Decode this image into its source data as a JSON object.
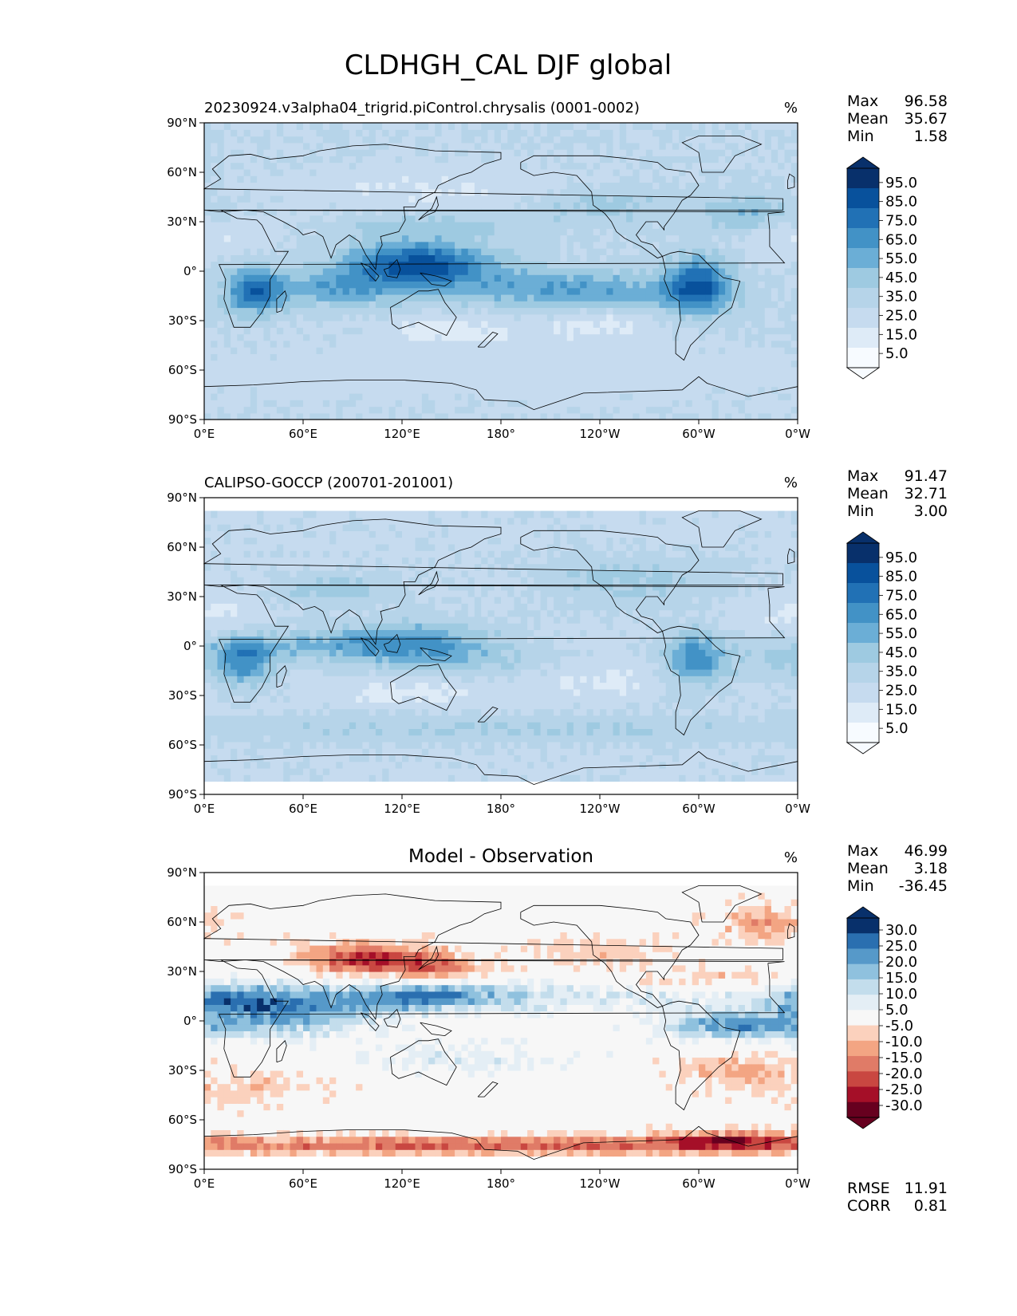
{
  "figure_title": "CLDHGH_CAL DJF global",
  "colors": {
    "seq_cmap": [
      "#f7fbff",
      "#deebf7",
      "#c6dbef",
      "#b6d4e9",
      "#9ecae1",
      "#6baed6",
      "#4292c6",
      "#2171b5",
      "#08519c",
      "#08306b"
    ],
    "div_cmap": [
      "#67001f",
      "#a50f28",
      "#c94741",
      "#e07b67",
      "#f3a583",
      "#fbd1bd",
      "#f7f7f7",
      "#e4eef5",
      "#c3ddec",
      "#8fc1de",
      "#5699c9",
      "#2a6fb0",
      "#08306b"
    ],
    "coast": "#000000"
  },
  "chart_data": [
    {
      "type": "heatmap",
      "title": "20230924.v3alpha04_trigrid.piControl.chrysalis (0001-0002)",
      "units": "%",
      "stats": [
        {
          "label": "Max",
          "value": "96.58"
        },
        {
          "label": "Mean",
          "value": "35.67"
        },
        {
          "label": "Min",
          "value": "1.58"
        }
      ],
      "colorbar": {
        "levels": [
          0,
          10,
          20,
          30,
          40,
          50,
          60,
          70,
          80,
          90,
          100
        ],
        "tick_labels": [
          "95.0",
          "85.0",
          "75.0",
          "65.0",
          "55.0",
          "45.0",
          "35.0",
          "25.0",
          "15.0",
          "5.0"
        ],
        "extend": "both",
        "cmap": "seq"
      },
      "xlim": [
        0,
        360
      ],
      "ylim": [
        -90,
        90
      ],
      "xticks": [
        "0°E",
        "60°E",
        "120°E",
        "180°",
        "120°W",
        "60°W",
        "0°W"
      ],
      "yticks": [
        "90°N",
        "60°N",
        "30°N",
        "0°",
        "30°S",
        "60°S",
        "90°S"
      ],
      "lat_coverage": [
        -90,
        90
      ],
      "field": {
        "base": 30,
        "features": [
          [
            130,
            5,
            30,
            9,
            55
          ],
          [
            30,
            -12,
            12,
            10,
            45
          ],
          [
            300,
            -8,
            14,
            12,
            50
          ],
          [
            190,
            -8,
            55,
            8,
            18
          ],
          [
            240,
            -15,
            40,
            8,
            22
          ],
          [
            140,
            28,
            40,
            6,
            15
          ],
          [
            330,
            35,
            20,
            8,
            20
          ],
          [
            80,
            -10,
            30,
            8,
            25
          ],
          [
            240,
            40,
            30,
            8,
            15
          ],
          [
            150,
            -35,
            25,
            6,
            -15
          ],
          [
            240,
            -30,
            25,
            8,
            -15
          ],
          [
            0,
            20,
            30,
            8,
            -10
          ],
          [
            140,
            50,
            60,
            10,
            -10
          ],
          [
            180,
            -60,
            200,
            15,
            -5
          ]
        ]
      }
    },
    {
      "type": "heatmap",
      "title": "CALIPSO-GOCCP (200701-201001)",
      "units": "%",
      "stats": [
        {
          "label": "Max",
          "value": "91.47"
        },
        {
          "label": "Mean",
          "value": "32.71"
        },
        {
          "label": "Min",
          "value": "3.00"
        }
      ],
      "colorbar": {
        "levels": [
          0,
          10,
          20,
          30,
          40,
          50,
          60,
          70,
          80,
          90,
          100
        ],
        "tick_labels": [
          "95.0",
          "85.0",
          "75.0",
          "65.0",
          "55.0",
          "45.0",
          "35.0",
          "25.0",
          "15.0",
          "5.0"
        ],
        "extend": "both",
        "cmap": "seq"
      },
      "xlim": [
        0,
        360
      ],
      "ylim": [
        -90,
        90
      ],
      "xticks": [
        "0°E",
        "60°E",
        "120°E",
        "180°",
        "120°W",
        "60°W",
        "0°W"
      ],
      "yticks": [
        "90°N",
        "60°N",
        "30°N",
        "0°",
        "30°S",
        "60°S",
        "90°S"
      ],
      "lat_coverage": [
        -82,
        82
      ],
      "field": {
        "base": 28,
        "features": [
          [
            125,
            2,
            35,
            9,
            35
          ],
          [
            25,
            -10,
            12,
            10,
            35
          ],
          [
            298,
            -8,
            14,
            12,
            40
          ],
          [
            200,
            -10,
            50,
            7,
            15
          ],
          [
            80,
            35,
            25,
            6,
            18
          ],
          [
            50,
            0,
            40,
            6,
            18
          ],
          [
            260,
            40,
            40,
            10,
            15
          ],
          [
            180,
            -50,
            180,
            6,
            12
          ],
          [
            350,
            -10,
            20,
            8,
            12
          ],
          [
            120,
            -28,
            30,
            6,
            -12
          ],
          [
            240,
            -15,
            40,
            10,
            -15
          ],
          [
            0,
            20,
            25,
            8,
            -10
          ]
        ]
      }
    },
    {
      "type": "heatmap",
      "title": "Model - Observation",
      "units": "%",
      "stats": [
        {
          "label": "Max",
          "value": "46.99"
        },
        {
          "label": "Mean",
          "value": "3.18"
        },
        {
          "label": "Min",
          "value": "-36.45"
        }
      ],
      "extra_stats": [
        {
          "label": "RMSE",
          "value": "11.91"
        },
        {
          "label": "CORR",
          "value": "0.81"
        }
      ],
      "colorbar": {
        "levels": [
          -35,
          -30,
          -25,
          -20,
          -15,
          -10,
          -5,
          5,
          10,
          15,
          20,
          25,
          30,
          35
        ],
        "tick_labels": [
          "30.0",
          "25.0",
          "20.0",
          "15.0",
          "10.0",
          "5.0",
          "-5.0",
          "-10.0",
          "-15.0",
          "-20.0",
          "-25.0",
          "-30.0"
        ],
        "extend": "both",
        "cmap": "div"
      },
      "xlim": [
        0,
        360
      ],
      "ylim": [
        -90,
        90
      ],
      "xticks": [
        "0°E",
        "60°E",
        "120°E",
        "180°",
        "120°W",
        "60°W",
        "0°W"
      ],
      "yticks": [
        "90°N",
        "60°N",
        "30°N",
        "0°",
        "30°S",
        "60°S",
        "90°S"
      ],
      "lat_coverage": [
        -82,
        82
      ],
      "field": {
        "base": 0,
        "features": [
          [
            130,
            15,
            40,
            6,
            24
          ],
          [
            45,
            5,
            40,
            10,
            22
          ],
          [
            15,
            15,
            30,
            6,
            15
          ],
          [
            322,
            -3,
            30,
            6,
            22
          ],
          [
            245,
            15,
            60,
            6,
            10
          ],
          [
            100,
            38,
            30,
            7,
            -25
          ],
          [
            145,
            32,
            20,
            5,
            -14
          ],
          [
            180,
            -75,
            200,
            4,
            -20
          ],
          [
            320,
            -72,
            30,
            4,
            -18
          ],
          [
            340,
            60,
            20,
            8,
            -12
          ],
          [
            320,
            -30,
            25,
            8,
            -10
          ],
          [
            30,
            -40,
            30,
            8,
            -8
          ],
          [
            300,
            25,
            40,
            6,
            -8
          ],
          [
            160,
            -22,
            40,
            6,
            8
          ],
          [
            240,
            42,
            30,
            6,
            -8
          ]
        ]
      }
    }
  ]
}
